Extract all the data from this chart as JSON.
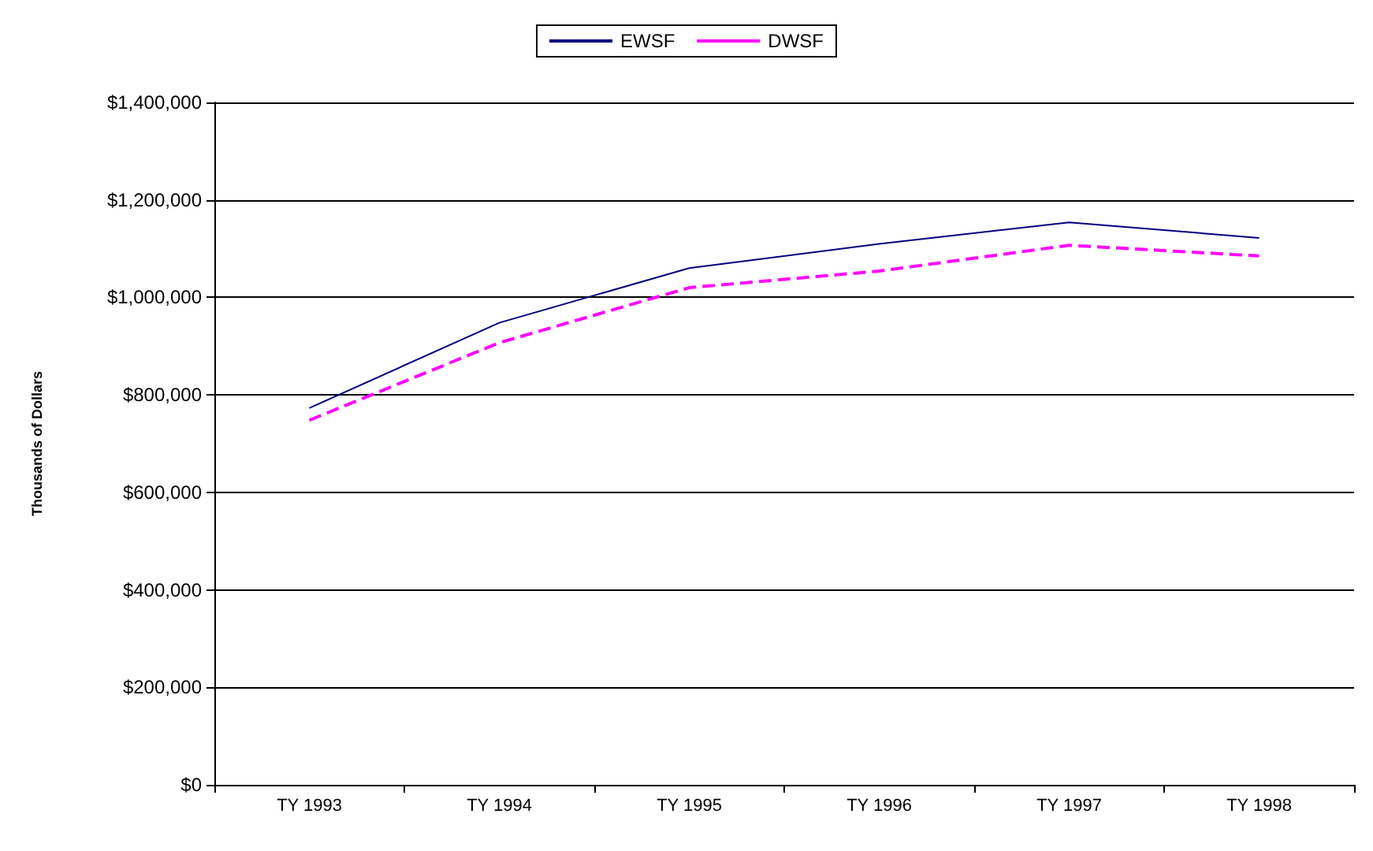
{
  "chart_data": {
    "type": "line",
    "ylabel": "Thousands of Dollars",
    "categories": [
      "TY 1993",
      "TY 1994",
      "TY 1995",
      "TY 1996",
      "TY 1997",
      "TY 1998"
    ],
    "series": [
      {
        "name": "EWSF",
        "color": "#000080",
        "line_style": "solid",
        "values": [
          773000,
          948000,
          1060000,
          1110000,
          1154000,
          1122000
        ]
      },
      {
        "name": "DWSF",
        "color": "#ff00ff",
        "line_style": "dashed",
        "values": [
          748000,
          907000,
          1020000,
          1054000,
          1107000,
          1085000
        ]
      }
    ],
    "ylim": [
      0,
      1400000
    ],
    "yticks": [
      {
        "value": 0,
        "label": "$0"
      },
      {
        "value": 200000,
        "label": "$200,000"
      },
      {
        "value": 400000,
        "label": "$400,000"
      },
      {
        "value": 600000,
        "label": "$600,000"
      },
      {
        "value": 800000,
        "label": "$800,000"
      },
      {
        "value": 1000000,
        "label": "$1,000,000"
      },
      {
        "value": 1200000,
        "label": "$1,200,000"
      },
      {
        "value": 1400000,
        "label": "$1,400,000"
      }
    ],
    "grid": "y",
    "legend": "top",
    "marker": "none"
  }
}
